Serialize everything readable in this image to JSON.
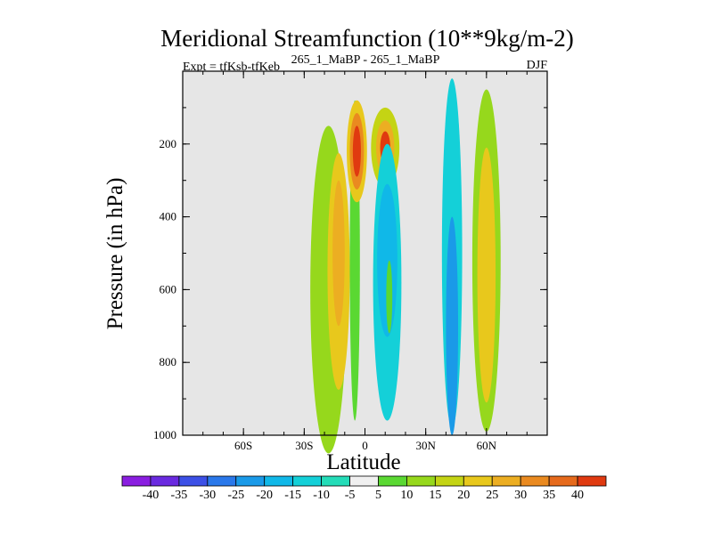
{
  "chart_data": {
    "type": "heatmap",
    "title": "Meridional Streamfunction (10**9kg/m-2)",
    "subtitle_left": "Expt = tfKsb-tfKeb",
    "subtitle_center": "265_1_MaBP - 265_1_MaBP",
    "subtitle_right": "DJF",
    "xlabel": "Latitude",
    "ylabel": "Pressure (in hPa)",
    "xlim": [
      -90,
      90
    ],
    "ylim": [
      1000,
      0
    ],
    "x_ticks": [
      {
        "value": -60,
        "label": "60S"
      },
      {
        "value": -30,
        "label": "30S"
      },
      {
        "value": 0,
        "label": "0"
      },
      {
        "value": 30,
        "label": "30N"
      },
      {
        "value": 60,
        "label": "60N"
      }
    ],
    "y_ticks": [
      {
        "value": 200,
        "label": "200"
      },
      {
        "value": 400,
        "label": "400"
      },
      {
        "value": 600,
        "label": "600"
      },
      {
        "value": 800,
        "label": "800"
      },
      {
        "value": 1000,
        "label": "1000"
      }
    ],
    "missing_color": "#e6e6e6",
    "colorbar": {
      "levels": [
        "-40",
        "-35",
        "-30",
        "-25",
        "-20",
        "-15",
        "-10",
        "-5",
        "5",
        "10",
        "15",
        "20",
        "25",
        "30",
        "35",
        "40"
      ],
      "colors": [
        "#8a1ee0",
        "#6a2ae0",
        "#3c50e6",
        "#2a78ea",
        "#1a9ae8",
        "#10b8e8",
        "#14d0d8",
        "#24dcb8",
        "#f0f0f0",
        "#5ad832",
        "#96d81c",
        "#c4d414",
        "#e8c81c",
        "#ecae22",
        "#ea8a20",
        "#e66a1c",
        "#e03a10"
      ]
    },
    "cells": [
      {
        "lat": -18,
        "p": 600,
        "dlat": 18,
        "dp": 900,
        "bin": 10
      },
      {
        "lat": -13,
        "p": 550,
        "dlat": 11,
        "dp": 650,
        "bin": 12
      },
      {
        "lat": -13,
        "p": 500,
        "dlat": 6,
        "dp": 400,
        "bin": 13
      },
      {
        "lat": -5,
        "p": 520,
        "dlat": 5,
        "dp": 880,
        "bin": 9
      },
      {
        "lat": -4,
        "p": 220,
        "dlat": 10,
        "dp": 280,
        "bin": 12
      },
      {
        "lat": -4,
        "p": 220,
        "dlat": 7,
        "dp": 210,
        "bin": 14
      },
      {
        "lat": -4,
        "p": 220,
        "dlat": 4,
        "dp": 140,
        "bin": 16
      },
      {
        "lat": 10,
        "p": 210,
        "dlat": 14,
        "dp": 220,
        "bin": 11
      },
      {
        "lat": 10,
        "p": 210,
        "dlat": 9,
        "dp": 150,
        "bin": 13
      },
      {
        "lat": 10,
        "p": 210,
        "dlat": 5,
        "dp": 90,
        "bin": 16
      },
      {
        "lat": 11,
        "p": 580,
        "dlat": 14,
        "dp": 760,
        "bin": 6
      },
      {
        "lat": 11,
        "p": 520,
        "dlat": 10,
        "dp": 420,
        "bin": 5
      },
      {
        "lat": 12,
        "p": 620,
        "dlat": 3,
        "dp": 200,
        "bin": 9
      },
      {
        "lat": 43,
        "p": 500,
        "dlat": 10,
        "dp": 960,
        "bin": 6
      },
      {
        "lat": 43,
        "p": 700,
        "dlat": 6,
        "dp": 600,
        "bin": 4
      },
      {
        "lat": 60,
        "p": 520,
        "dlat": 14,
        "dp": 940,
        "bin": 10
      },
      {
        "lat": 60,
        "p": 560,
        "dlat": 9,
        "dp": 700,
        "bin": 12
      }
    ]
  }
}
